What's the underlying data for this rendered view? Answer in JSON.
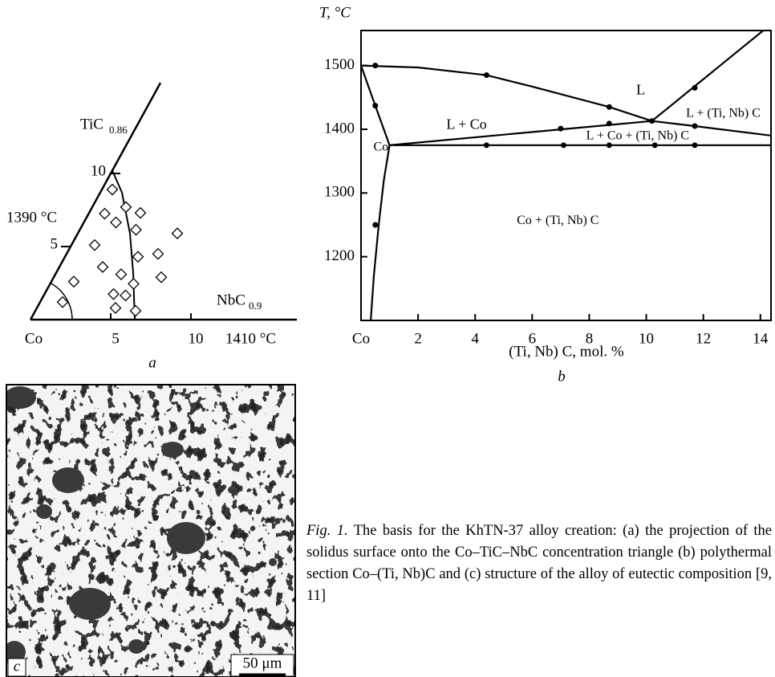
{
  "chart_data": [
    {
      "type": "ternary",
      "panel_label": "a",
      "xlabel": "NbC",
      "xlabel_sub": "0.9",
      "ylabel": "TiC",
      "ylabel_sub": "0.86",
      "xlim": [
        0,
        16.6
      ],
      "ylim": [
        0,
        16.2
      ],
      "xticks": [
        {
          "value": 0,
          "label": "Co"
        },
        5,
        10
      ],
      "yticks": [
        5,
        10
      ],
      "annotations": [
        "1390 °C",
        "1410 °C"
      ],
      "color": "#000000",
      "curve": {
        "x": [
          0,
          1.35,
          3.25,
          4.8,
          6.5
        ],
        "values": [
          10.2,
          8.7,
          5.9,
          3.2,
          0
        ]
      },
      "points": {
        "x": [
          0.65,
          1.0,
          2.1,
          3.2,
          2.0,
          1.45,
          3.5,
          2.7,
          4.1,
          4.55,
          5.7,
          6.2,
          6.7,
          1.4,
          1.4,
          4.3,
          5.1,
          5.2,
          4.9,
          6.25
        ],
        "values": [
          8.9,
          7.25,
          7.7,
          7.3,
          6.65,
          5.1,
          6.15,
          3.6,
          3.1,
          4.3,
          4.5,
          5.9,
          2.9,
          2.6,
          1.2,
          1.75,
          1.65,
          2.45,
          0.8,
          0.6
        ]
      }
    },
    {
      "type": "line",
      "panel_label": "b",
      "xlabel": "(Ti, Nb) C, mol. %",
      "ylabel": "T, °C",
      "xlim": [
        0,
        14.4
      ],
      "ylim": [
        1100,
        1555
      ],
      "xticks": [
        {
          "value": 0,
          "label": "Co"
        },
        2,
        4,
        6,
        8,
        10,
        12,
        14
      ],
      "yticks": [
        1200,
        1300,
        1400,
        1500
      ],
      "color": "#000000",
      "series": [
        {
          "x": [
            0,
            2,
            4.4,
            6,
            8.7,
            10.2
          ],
          "values": [
            1500,
            1497,
            1485,
            1467,
            1435,
            1413
          ]
        },
        {
          "x": [
            0,
            0.5,
            1
          ],
          "values": [
            1500,
            1437,
            1375
          ]
        },
        {
          "x": [
            1,
            0.8,
            0.62,
            0.45,
            0.34
          ],
          "values": [
            1375,
            1320,
            1250,
            1170,
            1100
          ]
        },
        {
          "x": [
            1,
            10.2
          ],
          "values": [
            1375,
            1413
          ]
        },
        {
          "x": [
            10.2,
            11.7,
            14.4
          ],
          "values": [
            1413,
            1405,
            1390
          ]
        },
        {
          "x": [
            10.2,
            14.1
          ],
          "values": [
            1413,
            1555
          ]
        },
        {
          "x": [
            1,
            14.4
          ],
          "values": [
            1375,
            1375
          ]
        }
      ],
      "points": {
        "x": [
          0.5,
          4.4,
          8.7,
          0.5,
          0.5,
          7,
          8.7,
          11.7,
          4.4,
          7.1,
          8.7,
          10.3,
          11.7,
          11.7,
          10.2
        ],
        "values": [
          1500,
          1485,
          1435,
          1437,
          1250,
          1401,
          1409,
          1405,
          1375,
          1375,
          1375,
          1375,
          1375,
          1465,
          1413
        ]
      },
      "annotations": [
        "L",
        "L + Co",
        "L + (Ti, Nb) C",
        "L + Co + (Ti, Nb) C",
        "Co + (Ti, Nb) C",
        "Co"
      ]
    }
  ],
  "figure": {
    "panel_label": "c",
    "scale_label": "50 μm",
    "caption_label": "Fig. 1.",
    "caption": "The basis for the KhTN-37 alloy creation: (a) the projection of the solidus surface onto the Co–TiC–NbC concentration triangle (b) polythermal section Co–(Ti, Nb)C and (c) structure of the alloy of eutectic composition [9, 11]"
  }
}
